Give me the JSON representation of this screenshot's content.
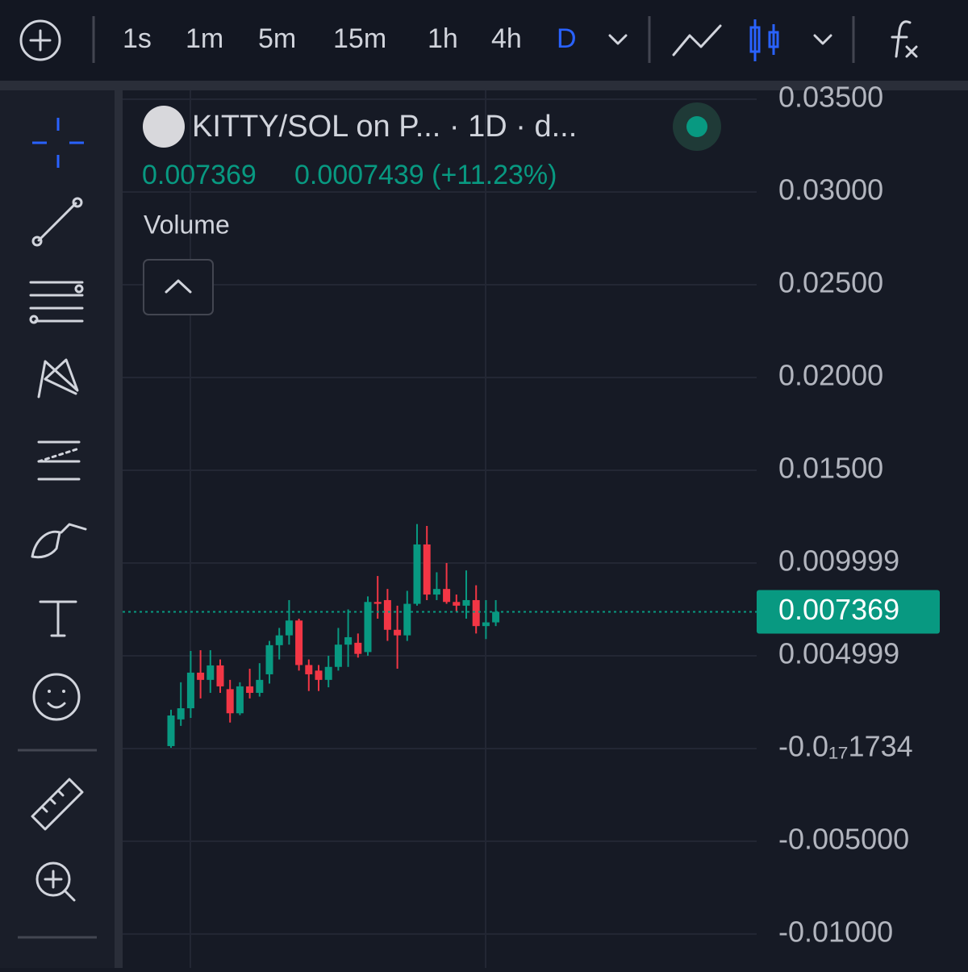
{
  "toolbar": {
    "intervals": [
      "1s",
      "1m",
      "5m",
      "15m",
      "1h",
      "4h",
      "D"
    ],
    "active_interval": 6
  },
  "chart_data": {
    "type": "candlestick",
    "title": "KITTY/SOL on P...  · 1D · d...",
    "legend_values": [
      "0.007369",
      "0.0007439 (+11.23%)"
    ],
    "indicator": "Volume",
    "last_price": 0.007369,
    "up_color": "#089981",
    "down_color": "#f23645",
    "open": [
      0.00013,
      0.00157,
      0.00217,
      0.00409,
      0.0037,
      0.00448,
      0.0032,
      0.0019,
      0.00335,
      0.003,
      0.004,
      0.00557,
      0.0061,
      0.0069,
      0.0045,
      0.0042,
      0.0037,
      0.0044,
      0.0056,
      0.0057,
      0.0052,
      0.0079,
      0.008,
      0.0064,
      0.0061,
      0.0078,
      0.011,
      0.0083,
      0.0086,
      0.0079,
      0.0077,
      0.008,
      0.0066,
      0.0068
    ],
    "high": [
      0.00209,
      0.00357,
      0.00526,
      0.0053,
      0.0053,
      0.0048,
      0.0037,
      0.00357,
      0.0043,
      0.0046,
      0.0058,
      0.0065,
      0.008,
      0.007,
      0.0048,
      0.0045,
      0.005,
      0.0065,
      0.0075,
      0.0062,
      0.0082,
      0.0093,
      0.0086,
      0.0077,
      0.0085,
      0.0121,
      0.012,
      0.0095,
      0.01,
      0.0083,
      0.0096,
      0.0088,
      0.008,
      0.008
    ],
    "low": [
      4e-05,
      0.00122,
      0.00165,
      0.0027,
      0.003,
      0.003,
      0.0014,
      0.0018,
      0.0027,
      0.0028,
      0.0035,
      0.0048,
      0.0056,
      0.0042,
      0.0031,
      0.0031,
      0.0033,
      0.0042,
      0.0044,
      0.0049,
      0.005,
      0.007,
      0.0058,
      0.0043,
      0.0058,
      0.0077,
      0.008,
      0.008,
      0.0078,
      0.0074,
      0.007,
      0.0062,
      0.0059,
      0.0066
    ],
    "close": [
      0.00178,
      0.00217,
      0.00409,
      0.0037,
      0.00448,
      0.00335,
      0.0019,
      0.00335,
      0.003,
      0.0037,
      0.00557,
      0.0061,
      0.0069,
      0.0045,
      0.004,
      0.0037,
      0.0044,
      0.0056,
      0.006,
      0.0051,
      0.0079,
      0.0078,
      0.0064,
      0.0061,
      0.0078,
      0.011,
      0.0083,
      0.0086,
      0.0079,
      0.0077,
      0.008,
      0.0066,
      0.0068,
      0.007369
    ],
    "ylim": [
      -0.01183,
      0.03548
    ],
    "yticks": [
      {
        "value": 0.035,
        "label": "0.03500"
      },
      {
        "value": 0.03,
        "label": "0.03000"
      },
      {
        "value": 0.025,
        "label": "0.02500"
      },
      {
        "value": 0.02,
        "label": "0.02000"
      },
      {
        "value": 0.015,
        "label": "0.01500"
      },
      0.009999,
      0.004999,
      {
        "value": -1.734e-18,
        "label": "-0.0₁₇1734"
      },
      {
        "value": -0.005,
        "label": "-0.005000"
      },
      {
        "value": -0.01,
        "label": "-0.01000"
      }
    ],
    "grid": true
  }
}
